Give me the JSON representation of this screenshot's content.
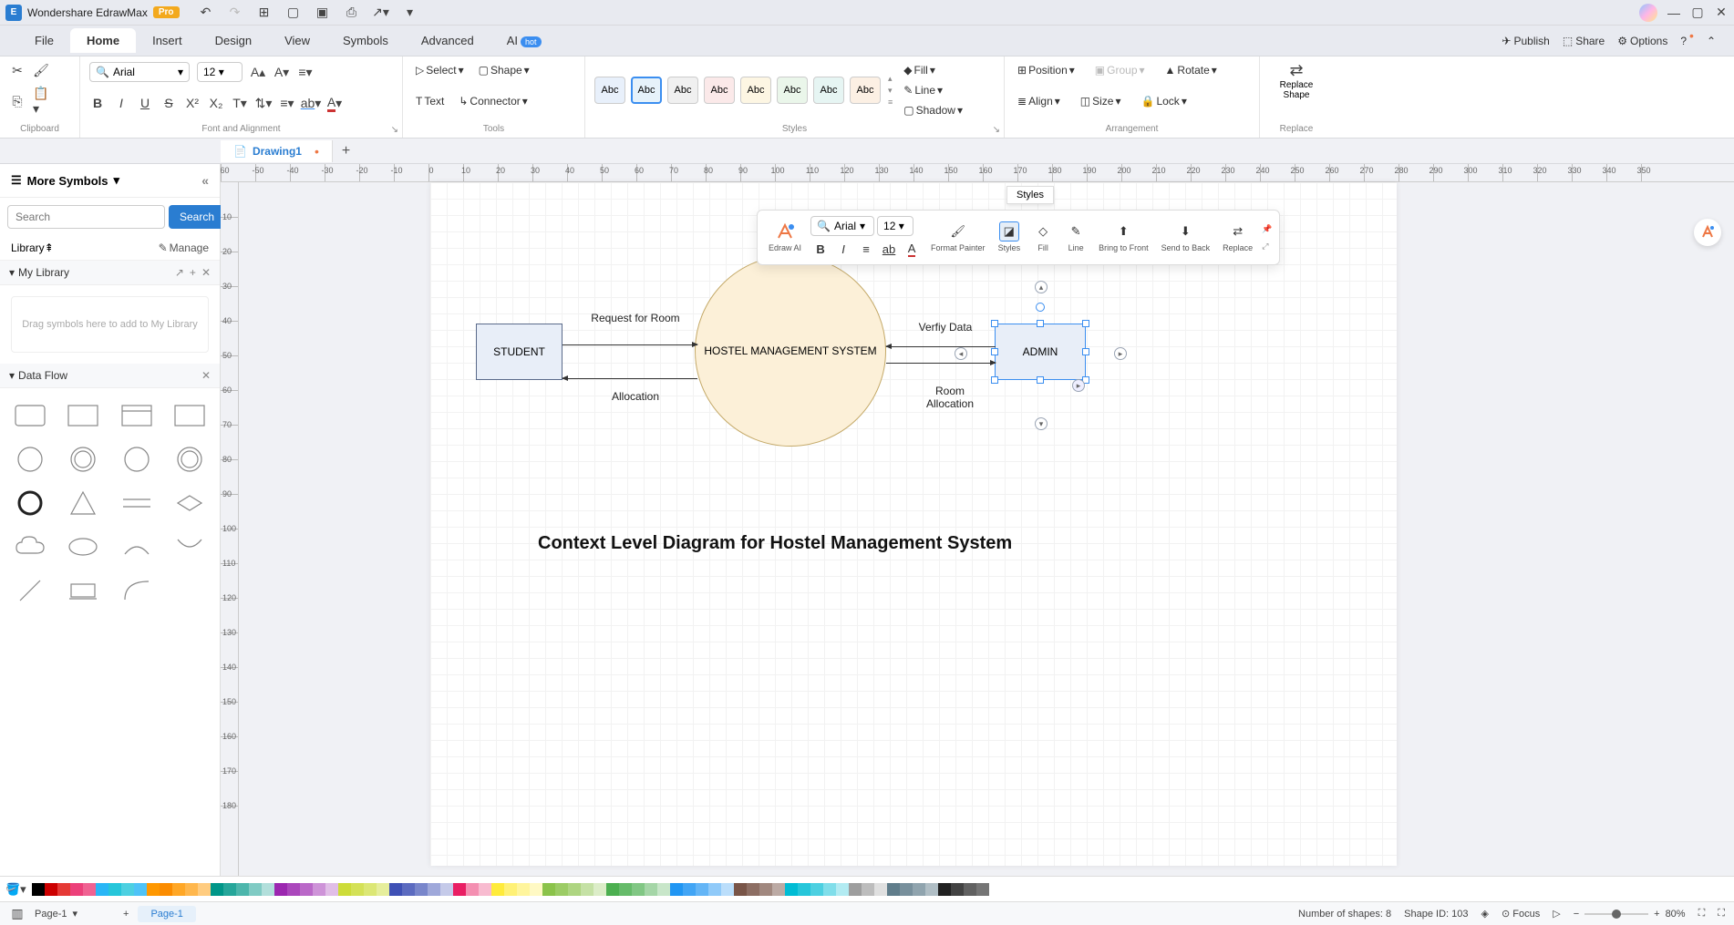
{
  "titlebar": {
    "app_name": "Wondershare EdrawMax",
    "badge": "Pro"
  },
  "menubar": {
    "items": [
      "File",
      "Home",
      "Insert",
      "Design",
      "View",
      "Symbols",
      "Advanced",
      "AI"
    ],
    "active_index": 1,
    "right": {
      "publish": "Publish",
      "share": "Share",
      "options": "Options"
    }
  },
  "ribbon": {
    "clipboard_label": "Clipboard",
    "font_label": "Font and Alignment",
    "font_name": "Arial",
    "font_size": "12",
    "tools_label": "Tools",
    "select": "Select",
    "shape": "Shape",
    "text": "Text",
    "connector": "Connector",
    "styles_label": "Styles",
    "style_text": "Abc",
    "fill": "Fill",
    "line": "Line",
    "shadow": "Shadow",
    "arrangement_label": "Arrangement",
    "position": "Position",
    "group": "Group",
    "rotate": "Rotate",
    "align": "Align",
    "size": "Size",
    "lock": "Lock",
    "replace_label": "Replace",
    "replace_shape": "Replace\nShape"
  },
  "tabs": {
    "doc": "Drawing1"
  },
  "sidebar": {
    "more_symbols": "More Symbols",
    "search_placeholder": "Search",
    "search_btn": "Search",
    "library": "Library",
    "manage": "Manage",
    "my_library": "My Library",
    "dropzone": "Drag symbols here to add to My Library",
    "data_flow": "Data Flow"
  },
  "diagram": {
    "student_node": "STUDENT",
    "system_node": "HOSTEL MANAGEMENT SYSTEM",
    "admin_node": "ADMIN",
    "edge_request": "Request for Room",
    "edge_allocation": "Allocation",
    "edge_verify": "Verfiy Data",
    "edge_room_alloc": "Room Allocation",
    "title": "Context Level Diagram for Hostel Management System",
    "colors": {
      "rect_border": "#5a6a8a",
      "rect_fill": "#e8eef8",
      "circle_border": "#c4a968",
      "circle_fill": "#fcf0d8",
      "selection": "#3b8ef0"
    }
  },
  "float_toolbar": {
    "styles_tip": "Styles",
    "font": "Arial",
    "size": "12",
    "edraw_ai": "Edraw AI",
    "format_painter": "Format Painter",
    "styles": "Styles",
    "fill": "Fill",
    "line": "Line",
    "bring_front": "Bring to Front",
    "send_back": "Send to Back",
    "replace": "Replace"
  },
  "ruler_h": [
    "-60",
    "-50",
    "-40",
    "-30",
    "-20",
    "-10",
    "0",
    "10",
    "20",
    "30",
    "40",
    "50",
    "60",
    "70",
    "80",
    "90",
    "100",
    "110",
    "120",
    "130",
    "140",
    "150",
    "160",
    "170",
    "180",
    "190",
    "200",
    "210",
    "220",
    "230",
    "240",
    "250",
    "260",
    "270",
    "280",
    "290",
    "300",
    "310",
    "320",
    "330",
    "340",
    "350"
  ],
  "ruler_v": [
    "10",
    "20",
    "30",
    "40",
    "50",
    "60",
    "70",
    "80",
    "90",
    "100",
    "110",
    "120",
    "130",
    "140",
    "150",
    "160",
    "170",
    "180"
  ],
  "color_palette": [
    "#000000",
    "#cc0000",
    "#e53935",
    "#ec407a",
    "#f06292",
    "#29b6f6",
    "#26c6da",
    "#4dd0e1",
    "#4fc3f7",
    "#ff9800",
    "#fb8c00",
    "#ffa726",
    "#ffb74d",
    "#ffcc80",
    "#009688",
    "#26a69a",
    "#4db6ac",
    "#80cbc4",
    "#b2dfdb",
    "#9c27b0",
    "#ab47bc",
    "#ba68c8",
    "#ce93d8",
    "#e1bee7",
    "#cddc39",
    "#d4e157",
    "#dce775",
    "#e6ee9c",
    "#3f51b5",
    "#5c6bc0",
    "#7986cb",
    "#9fa8da",
    "#c5cae9",
    "#e91e63",
    "#f48fb1",
    "#f8bbd0",
    "#ffeb3b",
    "#fff176",
    "#fff59d",
    "#fff9c4",
    "#8bc34a",
    "#9ccc65",
    "#aed581",
    "#c5e1a5",
    "#dcedc8",
    "#4caf50",
    "#66bb6a",
    "#81c784",
    "#a5d6a7",
    "#c8e6c9",
    "#2196f3",
    "#42a5f5",
    "#64b5f6",
    "#90caf9",
    "#bbdefb",
    "#795548",
    "#8d6e63",
    "#a1887f",
    "#bcaaa4",
    "#00bcd4",
    "#26c6da",
    "#4dd0e1",
    "#80deea",
    "#b2ebf2",
    "#9e9e9e",
    "#bdbdbd",
    "#e0e0e0",
    "#607d8b",
    "#78909c",
    "#90a4ae",
    "#b0bec5",
    "#212121",
    "#424242",
    "#616161",
    "#757575",
    "#ffffff"
  ],
  "status": {
    "page_label": "Page-1",
    "page_tab": "Page-1",
    "shapes": "Number of shapes: 8",
    "shape_id": "Shape ID: 103",
    "focus": "Focus",
    "zoom": "80%"
  }
}
